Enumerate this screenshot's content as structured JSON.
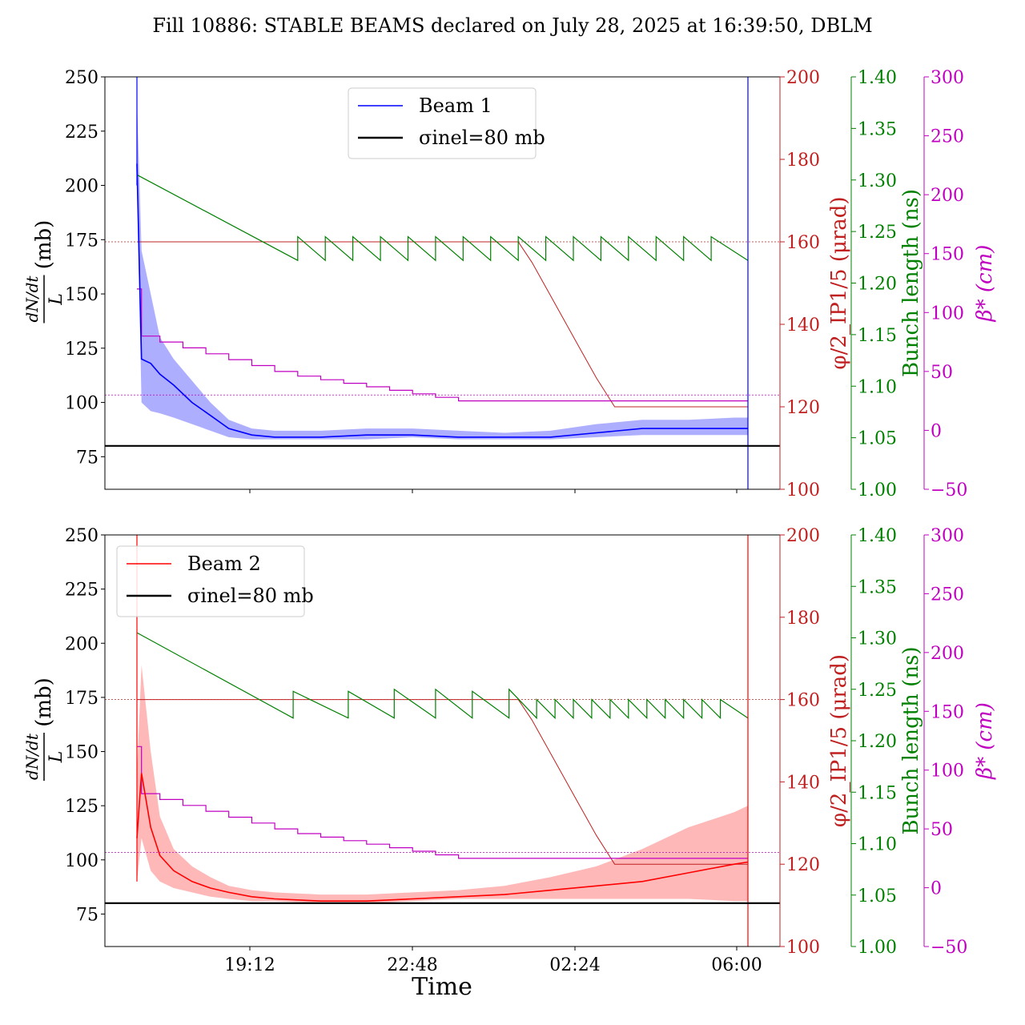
{
  "title": "Fill 10886: STABLE BEAMS declared on July 28, 2025 at 16:39:50, DBLM",
  "colors": {
    "beam1": "#0000ff",
    "beam1_band": "#8b8bff",
    "beam2": "#ff0000",
    "beam2_band": "#ff9a9a",
    "crossing": "#c02020",
    "bunch_length": "#008000",
    "beta": "#c000c0",
    "sigma": "#000000"
  },
  "chart_data": [
    {
      "type": "line",
      "panel": "top",
      "xlabel": "",
      "x_ticks": [
        "19:12",
        "22:48",
        "02:24",
        "06:00"
      ],
      "ylabel": "dN/dt / L (mb)",
      "ylim": [
        60,
        250
      ],
      "y_ticks": [
        75,
        100,
        125,
        150,
        175,
        200,
        225,
        250
      ],
      "crossing_axis": {
        "label": "φ/2_IP1/5 (μrad)",
        "ylim": [
          100,
          200
        ],
        "ticks": [
          100,
          120,
          140,
          160,
          180,
          200
        ]
      },
      "bunch_axis": {
        "label": "Bunch length (ns)",
        "ylim": [
          1.0,
          1.4
        ],
        "ticks": [
          "1.00",
          "1.05",
          "1.10",
          "1.15",
          "1.20",
          "1.25",
          "1.30",
          "1.35",
          "1.40"
        ]
      },
      "beta_axis": {
        "label": "β* (cm)",
        "ylim": [
          -50,
          300
        ],
        "ticks": [
          "−50",
          "0",
          "50",
          "100",
          "150",
          "200",
          "250",
          "300"
        ]
      },
      "legend": {
        "position": "top-center",
        "entries": [
          "Beam 1",
          "σinel=80 mb"
        ]
      },
      "series": [
        {
          "name": "Beam 1",
          "axis": "left",
          "x_hours": [
            0,
            0.1,
            0.3,
            0.5,
            0.8,
            1.2,
            1.6,
            2.0,
            2.5,
            3,
            4,
            5,
            6,
            7,
            8,
            9,
            10,
            11,
            12,
            13,
            13.3
          ],
          "values": [
            210,
            120,
            118,
            113,
            108,
            100,
            94,
            88,
            85,
            84,
            84,
            85,
            85,
            84,
            84,
            84,
            86,
            88,
            88,
            88,
            88
          ],
          "band_low": [
            200,
            100,
            96,
            95,
            93,
            90,
            87,
            84,
            83,
            83,
            83,
            83,
            84,
            83,
            83,
            83,
            84,
            85,
            85,
            85,
            85
          ],
          "band_high": [
            240,
            170,
            150,
            130,
            120,
            110,
            100,
            92,
            88,
            87,
            87,
            88,
            88,
            87,
            86,
            87,
            90,
            92,
            92,
            93,
            93
          ]
        },
        {
          "name": "σinel=80 mb",
          "axis": "left",
          "constant": 80
        },
        {
          "name": "crossing angle",
          "axis": "crossing",
          "x_hours": [
            0,
            8.3,
            8.6,
            9.1,
            9.6,
            10.0,
            10.4,
            13.3
          ],
          "values": [
            160,
            160,
            155,
            145,
            135,
            127,
            120,
            120
          ]
        },
        {
          "name": "bunch length",
          "axis": "bunch",
          "x_hours": [
            0,
            3.5,
            3.5,
            4.1,
            4.1,
            4.7,
            4.7,
            5.3,
            5.3,
            5.9,
            5.9,
            6.5,
            6.5,
            7.1,
            7.1,
            7.7,
            7.7,
            8.3,
            8.3,
            8.9,
            8.9,
            9.5,
            9.5,
            10.1,
            10.1,
            10.7,
            10.7,
            11.3,
            11.3,
            11.9,
            11.9,
            12.5,
            12.5,
            13.3
          ],
          "values": [
            1.305,
            1.222,
            1.245,
            1.222,
            1.245,
            1.222,
            1.245,
            1.222,
            1.245,
            1.222,
            1.245,
            1.222,
            1.245,
            1.222,
            1.245,
            1.222,
            1.245,
            1.222,
            1.245,
            1.222,
            1.245,
            1.222,
            1.245,
            1.222,
            1.245,
            1.222,
            1.245,
            1.222,
            1.245,
            1.222,
            1.245,
            1.222,
            1.245,
            1.222
          ]
        },
        {
          "name": "beta*",
          "axis": "beta",
          "x_hours": [
            0,
            0.1,
            0.5,
            1.0,
            1.5,
            2.0,
            2.5,
            3.0,
            3.5,
            4.0,
            4.5,
            5.0,
            5.5,
            6.0,
            6.5,
            7.0,
            13.3
          ],
          "values": [
            120,
            80,
            75,
            70,
            65,
            60,
            55,
            50,
            46,
            43,
            40,
            37,
            34,
            31,
            28,
            25,
            25
          ]
        },
        {
          "name": "beta* reference",
          "axis": "beta",
          "constant": 30
        },
        {
          "name": "crossing reference",
          "axis": "crossing",
          "constant": 160
        }
      ]
    },
    {
      "type": "line",
      "panel": "bottom",
      "xlabel": "Time",
      "x_ticks": [
        "19:12",
        "22:48",
        "02:24",
        "06:00"
      ],
      "ylabel": "dN/dt / L (mb)",
      "ylim": [
        60,
        250
      ],
      "y_ticks": [
        75,
        100,
        125,
        150,
        175,
        200,
        225,
        250
      ],
      "crossing_axis": {
        "label": "φ/2_IP1/5 (μrad)",
        "ylim": [
          100,
          200
        ],
        "ticks": [
          100,
          120,
          140,
          160,
          180,
          200
        ]
      },
      "bunch_axis": {
        "label": "Bunch length (ns)",
        "ylim": [
          1.0,
          1.4
        ],
        "ticks": [
          "1.00",
          "1.05",
          "1.10",
          "1.15",
          "1.20",
          "1.25",
          "1.30",
          "1.35",
          "1.40"
        ]
      },
      "beta_axis": {
        "label": "β* (cm)",
        "ylim": [
          -50,
          300
        ],
        "ticks": [
          "−50",
          "0",
          "50",
          "100",
          "150",
          "200",
          "250",
          "300"
        ]
      },
      "legend": {
        "position": "top-left",
        "entries": [
          "Beam 2",
          "σinel=80 mb"
        ]
      },
      "series": [
        {
          "name": "Beam 2",
          "axis": "left",
          "x_hours": [
            0,
            0.1,
            0.3,
            0.5,
            0.8,
            1.2,
            1.6,
            2.0,
            2.5,
            3,
            4,
            5,
            6,
            7,
            8,
            9,
            10,
            11,
            12,
            13,
            13.3
          ],
          "values": [
            110,
            140,
            115,
            102,
            95,
            90,
            87,
            85,
            83,
            82,
            81,
            81,
            82,
            83,
            84,
            86,
            88,
            90,
            94,
            98,
            99
          ],
          "band_low": [
            90,
            110,
            95,
            90,
            87,
            85,
            83,
            82,
            81,
            81,
            80,
            80,
            81,
            82,
            82,
            82,
            82,
            82,
            82,
            81,
            81
          ],
          "band_high": [
            140,
            190,
            150,
            120,
            105,
            97,
            92,
            88,
            86,
            85,
            84,
            84,
            85,
            86,
            88,
            92,
            97,
            105,
            115,
            122,
            125
          ]
        },
        {
          "name": "σinel=80 mb",
          "axis": "left",
          "constant": 80
        },
        {
          "name": "crossing angle",
          "axis": "crossing",
          "x_hours": [
            0,
            8.3,
            8.6,
            9.1,
            9.6,
            10.0,
            10.4,
            13.3
          ],
          "values": [
            160,
            160,
            155,
            145,
            135,
            127,
            120,
            120
          ]
        },
        {
          "name": "bunch length",
          "axis": "bunch",
          "x_hours": [
            0,
            3.4,
            3.4,
            4.6,
            4.6,
            5.6,
            5.6,
            6.5,
            6.5,
            7.3,
            7.3,
            8.1,
            8.1,
            8.7,
            8.7,
            9.1,
            9.1,
            9.5,
            9.5,
            9.9,
            9.9,
            10.3,
            10.3,
            10.7,
            10.7,
            11.1,
            11.1,
            11.5,
            11.5,
            11.9,
            11.9,
            12.3,
            12.3,
            12.7,
            12.7,
            13.3
          ],
          "values": [
            1.305,
            1.222,
            1.248,
            1.222,
            1.248,
            1.222,
            1.25,
            1.222,
            1.25,
            1.222,
            1.248,
            1.222,
            1.25,
            1.222,
            1.24,
            1.222,
            1.24,
            1.222,
            1.24,
            1.222,
            1.24,
            1.222,
            1.24,
            1.222,
            1.24,
            1.222,
            1.24,
            1.222,
            1.24,
            1.222,
            1.24,
            1.222,
            1.24,
            1.222,
            1.24,
            1.222
          ]
        },
        {
          "name": "beta*",
          "axis": "beta",
          "x_hours": [
            0,
            0.1,
            0.5,
            1.0,
            1.5,
            2.0,
            2.5,
            3.0,
            3.5,
            4.0,
            4.5,
            5.0,
            5.5,
            6.0,
            6.5,
            7.0,
            13.3
          ],
          "values": [
            120,
            80,
            75,
            70,
            65,
            60,
            55,
            50,
            46,
            43,
            40,
            37,
            34,
            31,
            28,
            25,
            25
          ]
        },
        {
          "name": "beta* reference",
          "axis": "beta",
          "constant": 30
        },
        {
          "name": "crossing reference",
          "axis": "crossing",
          "constant": 160
        }
      ]
    }
  ]
}
